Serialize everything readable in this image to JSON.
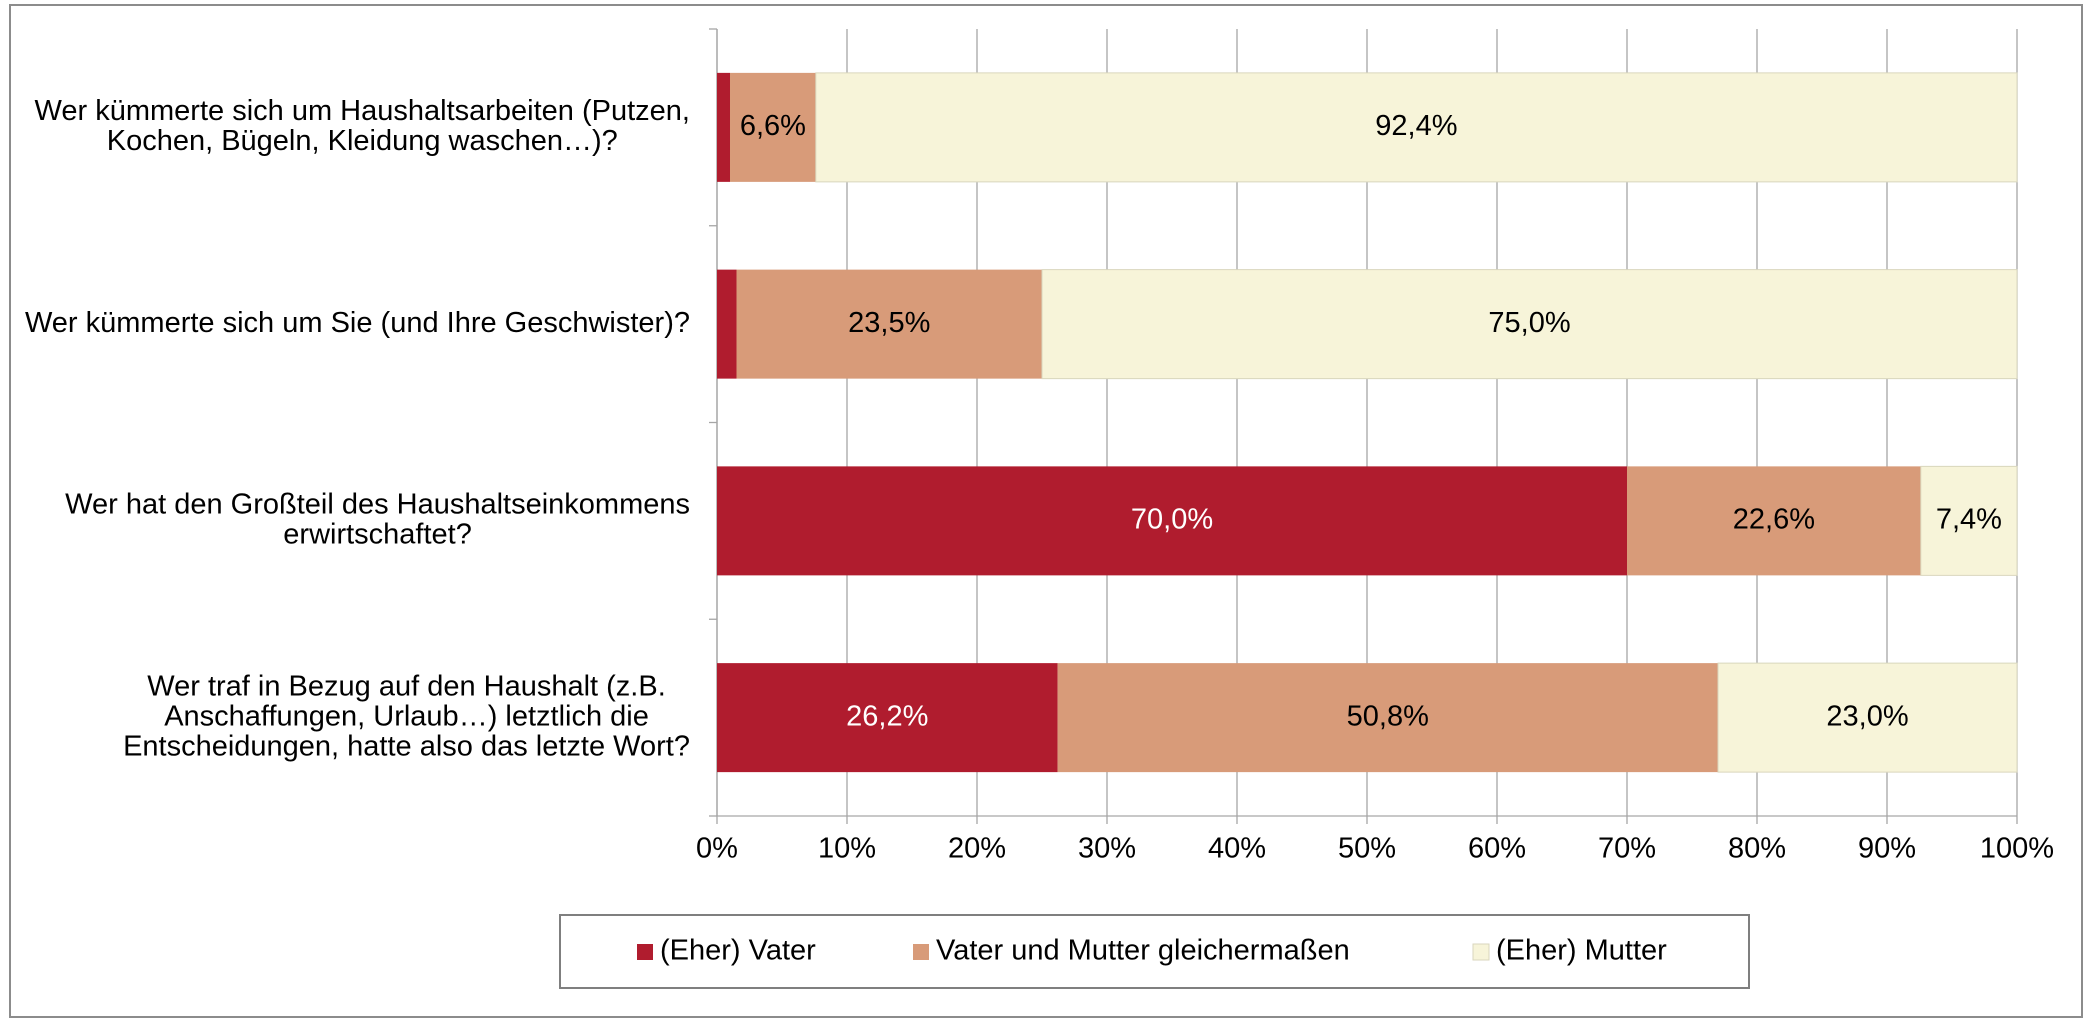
{
  "chart_data": {
    "type": "stacked_bar_horizontal",
    "categories": [
      [
        "Wer kümmerte sich um Haushaltsarbeiten (Putzen,",
        "Kochen, Bügeln, Kleidung waschen…)?"
      ],
      [
        "Wer kümmerte sich um Sie (und Ihre Geschwister)?"
      ],
      [
        "Wer hat den Großteil des Haushaltseinkommens",
        "erwirtschaftet?"
      ],
      [
        "Wer traf in Bezug auf den Haushalt (z.B.",
        "Anschaffungen, Urlaub…) letztlich die",
        "Entscheidungen, hatte also das letzte Wort?"
      ]
    ],
    "series": [
      {
        "name": "(Eher) Vater",
        "color": "#b01c2e",
        "label_color": "#ffffff",
        "values": [
          1.0,
          1.5,
          70.0,
          26.2
        ],
        "value_labels": [
          null,
          null,
          "70,0%",
          "26,2%"
        ]
      },
      {
        "name": "Vater und Mutter gleichermaßen",
        "color": "#d89b79",
        "label_color": "#000000",
        "values": [
          6.6,
          23.5,
          22.6,
          50.8
        ],
        "value_labels": [
          "6,6%",
          "23,5%",
          "22,6%",
          "50,8%"
        ]
      },
      {
        "name": "(Eher) Mutter",
        "color": "#f7f4d9",
        "label_color": "#000000",
        "values": [
          92.4,
          75.0,
          7.4,
          23.0
        ],
        "value_labels": [
          "92,4%",
          "75,0%",
          "7,4%",
          "23,0%"
        ]
      }
    ],
    "xlim": [
      0,
      100
    ],
    "xticks": [
      {
        "value": 0,
        "label": "0%"
      },
      {
        "value": 10,
        "label": "10%"
      },
      {
        "value": 20,
        "label": "20%"
      },
      {
        "value": 30,
        "label": "30%"
      },
      {
        "value": 40,
        "label": "40%"
      },
      {
        "value": 50,
        "label": "50%"
      },
      {
        "value": 60,
        "label": "60%"
      },
      {
        "value": 70,
        "label": "70%"
      },
      {
        "value": 80,
        "label": "80%"
      },
      {
        "value": 90,
        "label": "90%"
      },
      {
        "value": 100,
        "label": "100%"
      }
    ],
    "grid": true,
    "legend": "bottom"
  }
}
